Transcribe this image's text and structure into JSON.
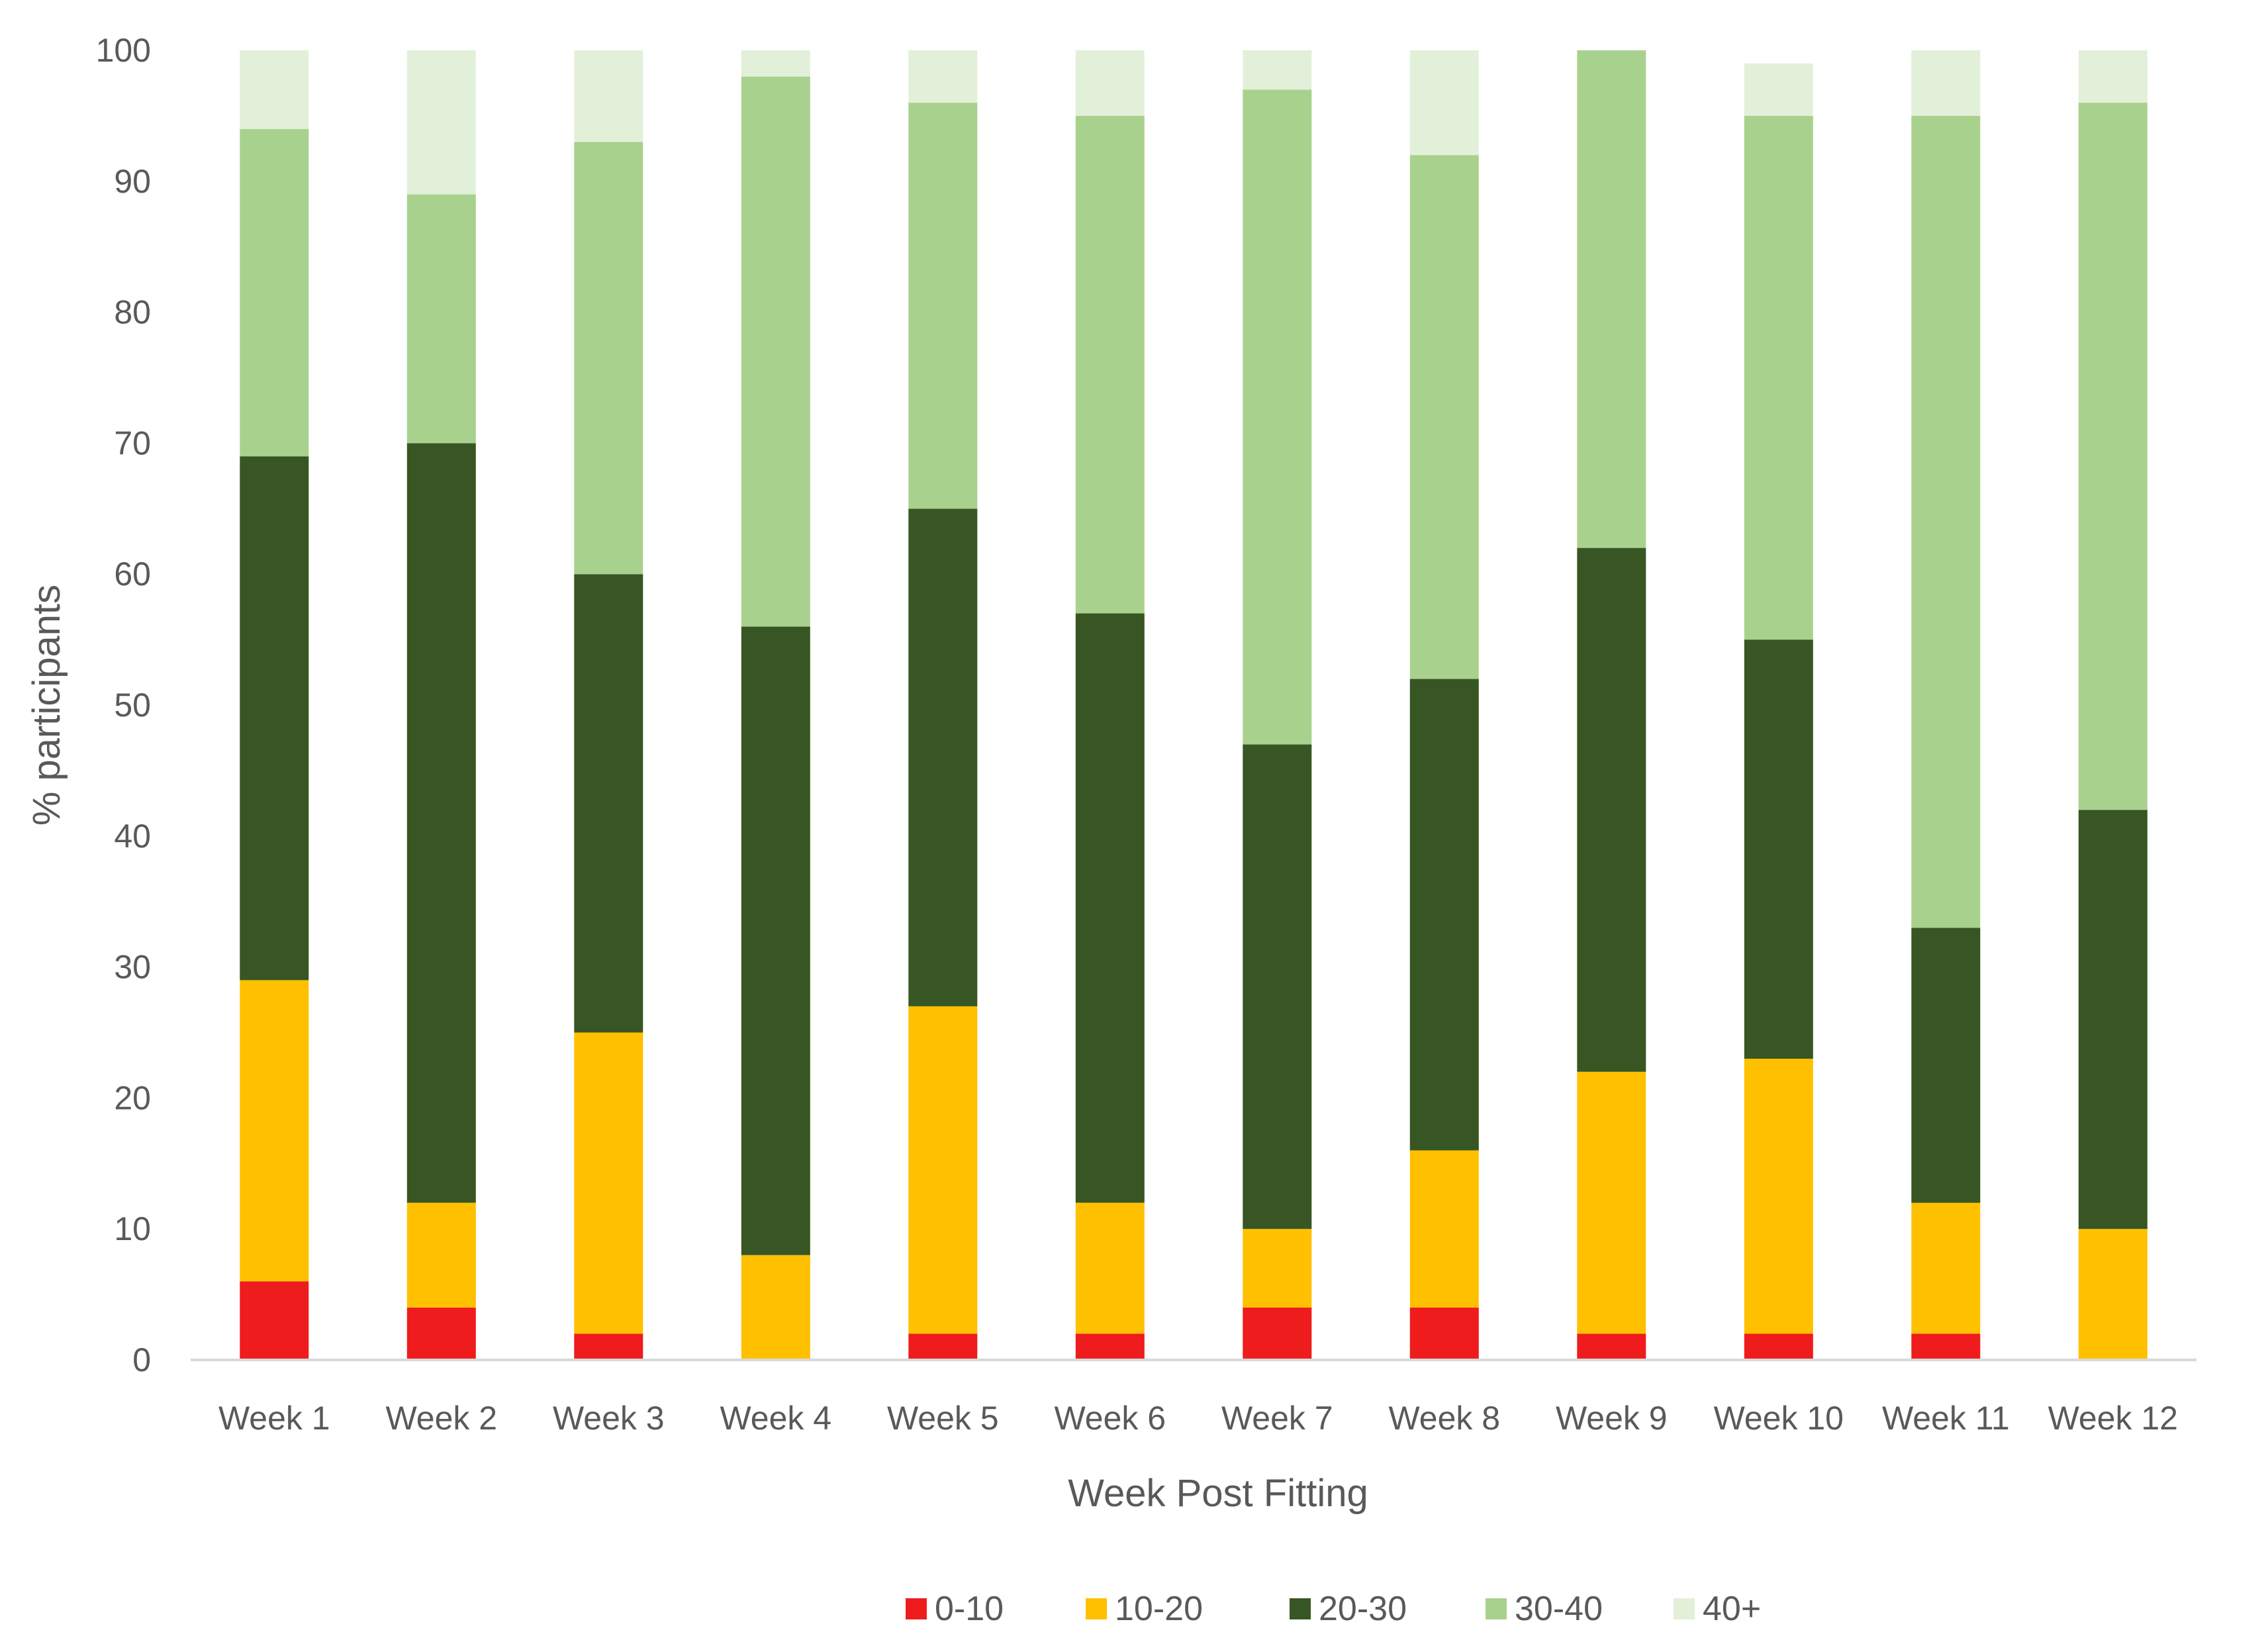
{
  "chart_data": {
    "type": "bar",
    "stacked": true,
    "title": "",
    "xlabel": "Week Post Fitting",
    "ylabel": "% participants",
    "ylim": [
      0,
      100
    ],
    "yticks": [
      0,
      10,
      20,
      30,
      40,
      50,
      60,
      70,
      80,
      90,
      100
    ],
    "grid": false,
    "legend_position": "bottom",
    "categories": [
      "Week 1",
      "Week 2",
      "Week 3",
      "Week 4",
      "Week 5",
      "Week 6",
      "Week 7",
      "Week 8",
      "Week 9",
      "Week 10",
      "Week 11",
      "Week 12"
    ],
    "series": [
      {
        "name": "0-10",
        "color": "#ee1c1c",
        "values": [
          6,
          4,
          2,
          0,
          2,
          2,
          4,
          4,
          2,
          2,
          2,
          0
        ]
      },
      {
        "name": "10-20",
        "color": "#ffc000",
        "values": [
          23,
          8,
          23,
          8,
          25,
          10,
          6,
          12,
          20,
          21,
          10,
          10
        ]
      },
      {
        "name": "20-30",
        "color": "#375623",
        "values": [
          40,
          58,
          35,
          48,
          38,
          45,
          37,
          36,
          40,
          32,
          21,
          32
        ]
      },
      {
        "name": "30-40",
        "color": "#a9d18e",
        "values": [
          25,
          19,
          33,
          42,
          31,
          38,
          50,
          40,
          38,
          40,
          62,
          54
        ]
      },
      {
        "name": "40+",
        "color": "#e2f0d9",
        "values": [
          6,
          11,
          7,
          2,
          4,
          5,
          3,
          8,
          0,
          4,
          5,
          4
        ]
      }
    ]
  }
}
